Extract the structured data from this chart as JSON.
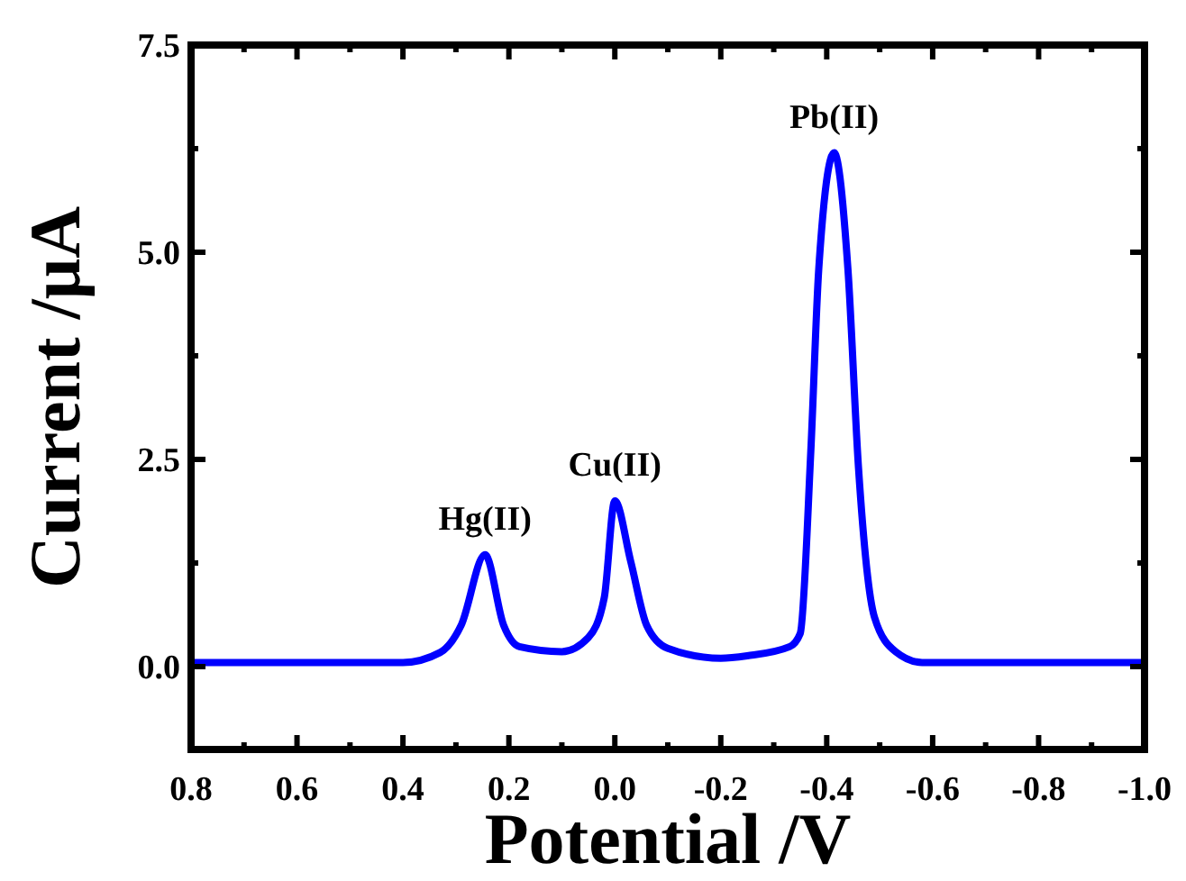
{
  "chart_data": {
    "type": "line",
    "xlabel": "Potential /V",
    "ylabel": "Current /μA",
    "xlim": [
      0.8,
      -1.0
    ],
    "xticks": [
      {
        "value": 0.8,
        "label": "0.8"
      },
      {
        "value": 0.6,
        "label": "0.6"
      },
      {
        "value": 0.4,
        "label": "0.4"
      },
      {
        "value": 0.2,
        "label": "0.2"
      },
      {
        "value": 0,
        "label": "0.0"
      },
      {
        "value": -0.2,
        "label": "-0.2"
      },
      {
        "value": -0.4,
        "label": "-0.4"
      },
      {
        "value": -0.6,
        "label": "-0.6"
      },
      {
        "value": -0.8,
        "label": "-0.8"
      },
      {
        "value": -1.0,
        "label": "-1.0"
      }
    ],
    "ylim": [
      -1,
      7.5
    ],
    "yticks": [
      {
        "value": 0,
        "label": "0.0"
      },
      {
        "value": 2.5,
        "label": "2.5"
      },
      {
        "value": 5,
        "label": "5.0"
      },
      {
        "value": 7.5,
        "label": "7.5"
      }
    ],
    "grid": false,
    "marker": "none",
    "line_style": "solid",
    "series": [
      {
        "color": "#0000ff",
        "x": [
          0.8,
          0.4,
          0.33,
          0.29,
          0.245,
          0.21,
          0.18,
          0.1,
          0.05,
          0.02,
          0.0,
          -0.03,
          -0.06,
          -0.1,
          -0.2,
          -0.25,
          -0.33,
          -0.35,
          -0.37,
          -0.385,
          -0.414,
          -0.44,
          -0.46,
          -0.49,
          -0.53,
          -0.58,
          -1.0
        ],
        "values": [
          0.05,
          0.05,
          0.17,
          0.5,
          1.35,
          0.5,
          0.24,
          0.18,
          0.35,
          0.83,
          2.0,
          1.27,
          0.5,
          0.22,
          0.1,
          0.13,
          0.24,
          0.4,
          2.6,
          4.8,
          6.2,
          4.8,
          2.4,
          0.6,
          0.18,
          0.05,
          0.05
        ]
      }
    ],
    "annotations": [
      {
        "text": "Hg(II)",
        "x": 0.245,
        "y": 1.35
      },
      {
        "text": "Cu(II)",
        "x": 0.0,
        "y": 2.0
      },
      {
        "text": "Pb(II)",
        "x": -0.414,
        "y": 6.2
      }
    ]
  }
}
